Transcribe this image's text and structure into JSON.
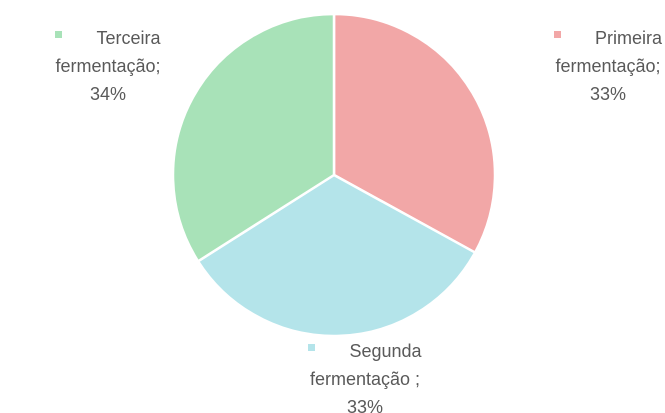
{
  "chart_data": {
    "type": "pie",
    "categories": [
      "Primeira fermentação;",
      "Segunda fermentação ;",
      "Terceira fermentação;"
    ],
    "values": [
      33,
      33,
      34
    ],
    "value_labels": [
      "33%",
      "33%",
      "34%"
    ],
    "colors": [
      "#f2a7a7",
      "#b4e4ea",
      "#a8e2b8"
    ]
  }
}
